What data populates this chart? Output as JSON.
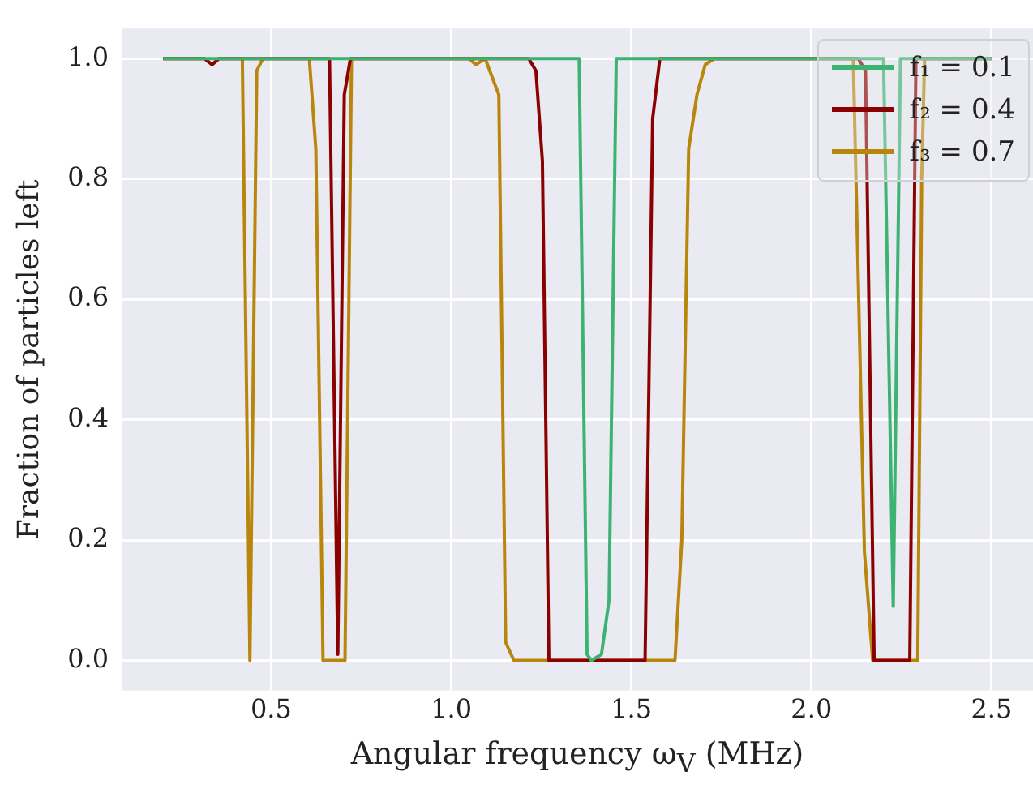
{
  "chart_data": {
    "type": "line",
    "xlabel": "Angular frequency ω$_{V}$ (MHz)",
    "ylabel": "Fraction of particles left",
    "xlim": [
      0.085,
      2.615
    ],
    "ylim": [
      -0.05,
      1.05
    ],
    "xticks": [
      0.5,
      {
        "value": 1.0,
        "label": "1.0"
      },
      1.5,
      {
        "value": 2.0,
        "label": "2.0"
      },
      2.5
    ],
    "yticks": [
      {
        "value": 0,
        "label": "0.0"
      },
      0.2,
      0.4,
      0.6,
      0.8,
      {
        "value": 1.0,
        "label": "1.0"
      }
    ],
    "grid": true,
    "legend": "top right",
    "marker": "none",
    "line_style": "solid",
    "series": [
      {
        "name": "f₁ = 0.1",
        "color": "#3cb371",
        "x": [
          0.2,
          1.355,
          1.377,
          1.389,
          1.417,
          1.438,
          1.458,
          2.2,
          2.227,
          2.247,
          2.5
        ],
        "values": [
          1,
          1,
          0.01,
          0,
          0.01,
          0.1,
          1,
          1,
          0.09,
          1,
          1
        ]
      },
      {
        "name": "f₂ = 0.4",
        "color": "#8b0000",
        "x": [
          0.2,
          0.315,
          0.336,
          0.355,
          0.662,
          0.685,
          0.703,
          0.72,
          1.215,
          1.235,
          1.253,
          1.271,
          1.538,
          1.559,
          1.579,
          2.13,
          2.15,
          2.174,
          2.273,
          2.29,
          2.5
        ],
        "values": [
          1,
          1,
          0.99,
          1,
          1,
          0.01,
          0.94,
          1,
          1,
          0.98,
          0.83,
          0,
          0,
          0.9,
          1,
          1,
          0.98,
          0,
          0,
          1,
          1
        ]
      },
      {
        "name": "f₃ = 0.7",
        "color": "#b8860b",
        "x": [
          0.2,
          0.315,
          0.336,
          0.355,
          0.42,
          0.441,
          0.46,
          0.477,
          0.606,
          0.624,
          0.644,
          0.705,
          0.723,
          1.05,
          1.068,
          1.094,
          1.132,
          1.151,
          1.174,
          1.621,
          1.64,
          1.659,
          1.682,
          1.705,
          1.73,
          2.116,
          2.147,
          2.17,
          2.295,
          2.306,
          2.314,
          2.5
        ],
        "values": [
          1,
          1,
          0.99,
          1,
          1,
          0,
          0.98,
          1,
          1,
          0.85,
          0,
          0,
          1,
          1,
          0.99,
          1,
          0.94,
          0.03,
          0,
          0,
          0.2,
          0.85,
          0.94,
          0.99,
          1,
          1,
          0.18,
          0,
          0,
          0.8,
          1,
          1
        ]
      }
    ]
  }
}
